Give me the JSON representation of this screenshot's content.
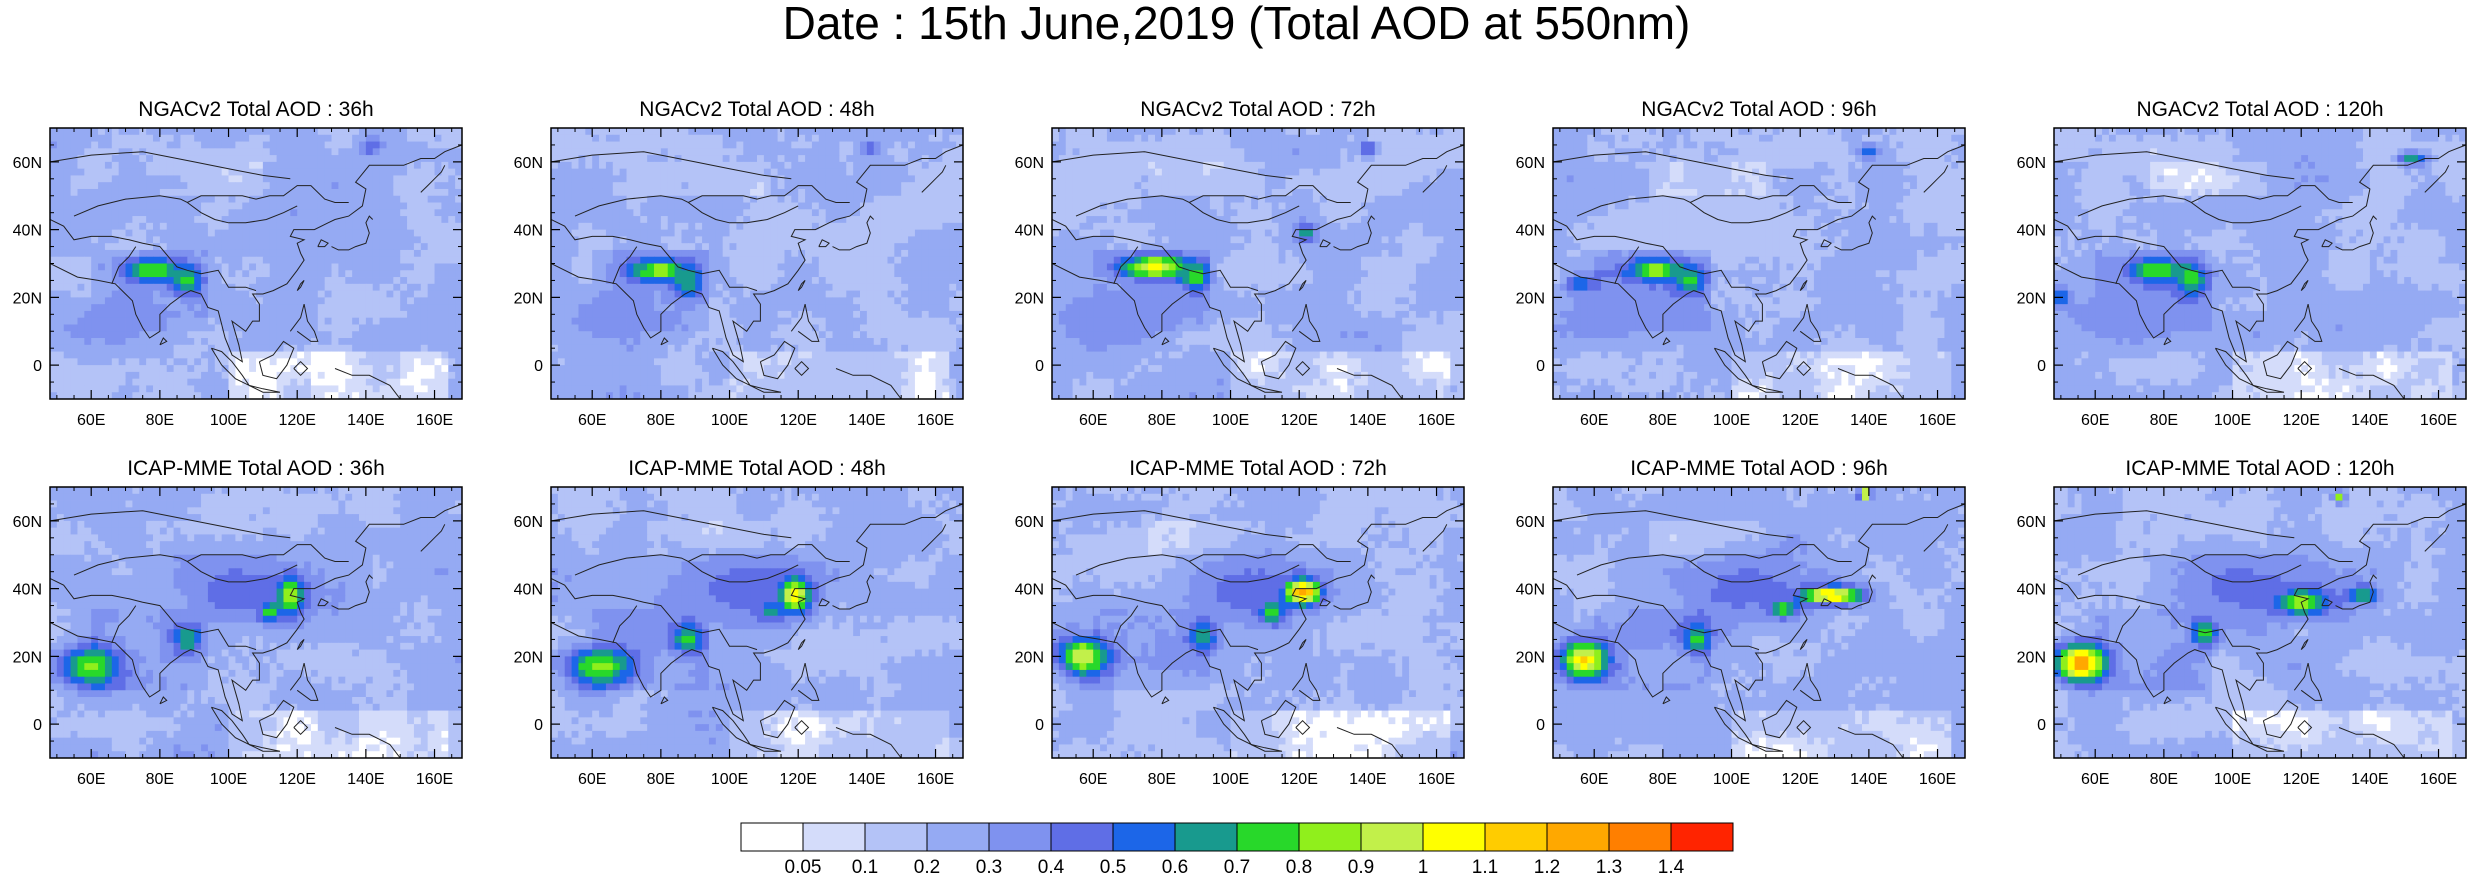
{
  "title": "Date : 15th June,2019 (Total AOD at 550nm)",
  "chart_data": {
    "type": "heatmap",
    "title": "Date : 15th June,2019 (Total AOD at 550nm)",
    "xlabel": "",
    "ylabel": "",
    "xlim": [
      48,
      168
    ],
    "ylim": [
      -10,
      70
    ],
    "x_ticks": [
      "60E",
      "80E",
      "100E",
      "120E",
      "140E",
      "160E"
    ],
    "y_ticks": [
      "60N",
      "40N",
      "20N",
      "0"
    ],
    "panels": [
      {
        "title": "NGACv2 Total AOD : 36h",
        "model": "NGACv2",
        "lead": 36
      },
      {
        "title": "NGACv2 Total AOD : 48h",
        "model": "NGACv2",
        "lead": 48
      },
      {
        "title": "NGACv2 Total AOD : 72h",
        "model": "NGACv2",
        "lead": 72
      },
      {
        "title": "NGACv2 Total AOD : 96h",
        "model": "NGACv2",
        "lead": 96
      },
      {
        "title": "NGACv2 Total AOD : 120h",
        "model": "NGACv2",
        "lead": 120
      },
      {
        "title": "ICAP-MME Total AOD : 36h",
        "model": "ICAP-MME",
        "lead": 36
      },
      {
        "title": "ICAP-MME Total AOD : 48h",
        "model": "ICAP-MME",
        "lead": 48
      },
      {
        "title": "ICAP-MME Total AOD : 72h",
        "model": "ICAP-MME",
        "lead": 72
      },
      {
        "title": "ICAP-MME Total AOD : 96h",
        "model": "ICAP-MME",
        "lead": 96
      },
      {
        "title": "ICAP-MME Total AOD : 120h",
        "model": "ICAP-MME",
        "lead": 120
      }
    ],
    "colorbar": {
      "levels": [
        "0.05",
        "0.1",
        "0.2",
        "0.3",
        "0.4",
        "0.5",
        "0.6",
        "0.7",
        "0.8",
        "0.9",
        "1",
        "1.1",
        "1.2",
        "1.3",
        "1.4"
      ],
      "colors": [
        "#ffffff",
        "#d4dcfa",
        "#b4c3f7",
        "#95aaf3",
        "#7f92ef",
        "#5f6ee6",
        "#1c66e8",
        "#189a8e",
        "#28d82a",
        "#90ef1c",
        "#c2f04a",
        "#ffff00",
        "#ffcc00",
        "#ffa800",
        "#ff7f00",
        "#ff2400"
      ]
    },
    "hotspots": [
      [
        {
          "lon": 78,
          "lat": 28,
          "aod": 0.85,
          "sx": 6,
          "sy": 2.5
        },
        {
          "lon": 88,
          "lat": 25,
          "aod": 0.75,
          "sx": 3,
          "sy": 3
        },
        {
          "lon": 141,
          "lat": 64,
          "aod": 0.55,
          "sx": 2,
          "sy": 1.5
        },
        {
          "lon": 67,
          "lat": 12,
          "aod": 0.35,
          "sx": 12,
          "sy": 6
        }
      ],
      [
        {
          "lon": 80,
          "lat": 28,
          "aod": 0.9,
          "sx": 6,
          "sy": 2.5
        },
        {
          "lon": 88,
          "lat": 24,
          "aod": 0.7,
          "sx": 3,
          "sy": 3
        },
        {
          "lon": 141,
          "lat": 64,
          "aod": 0.55,
          "sx": 2,
          "sy": 1.5
        },
        {
          "lon": 65,
          "lat": 14,
          "aod": 0.35,
          "sx": 12,
          "sy": 6
        }
      ],
      [
        {
          "lon": 78,
          "lat": 29,
          "aod": 1.05,
          "sx": 7,
          "sy": 2.5
        },
        {
          "lon": 90,
          "lat": 26,
          "aod": 0.8,
          "sx": 3,
          "sy": 3
        },
        {
          "lon": 122,
          "lat": 39,
          "aod": 0.7,
          "sx": 2,
          "sy": 2
        },
        {
          "lon": 140,
          "lat": 64,
          "aod": 0.55,
          "sx": 2,
          "sy": 1.5
        },
        {
          "lon": 65,
          "lat": 14,
          "aod": 0.4,
          "sx": 12,
          "sy": 6
        }
      ],
      [
        {
          "lon": 78,
          "lat": 28,
          "aod": 0.85,
          "sx": 6,
          "sy": 2.5
        },
        {
          "lon": 88,
          "lat": 25,
          "aod": 0.75,
          "sx": 3,
          "sy": 3
        },
        {
          "lon": 140,
          "lat": 63,
          "aod": 0.6,
          "sx": 2,
          "sy": 1.5
        },
        {
          "lon": 56,
          "lat": 24,
          "aod": 0.65,
          "sx": 3,
          "sy": 2
        },
        {
          "lon": 65,
          "lat": 14,
          "aod": 0.4,
          "sx": 12,
          "sy": 6
        }
      ],
      [
        {
          "lon": 78,
          "lat": 28,
          "aod": 0.8,
          "sx": 6,
          "sy": 2.5
        },
        {
          "lon": 88,
          "lat": 25,
          "aod": 0.8,
          "sx": 3,
          "sy": 3
        },
        {
          "lon": 152,
          "lat": 61,
          "aod": 0.7,
          "sx": 3,
          "sy": 1.5
        },
        {
          "lon": 50,
          "lat": 20,
          "aod": 0.7,
          "sx": 2,
          "sy": 2
        },
        {
          "lon": 65,
          "lat": 14,
          "aod": 0.4,
          "sx": 12,
          "sy": 6
        }
      ],
      [
        {
          "lon": 60,
          "lat": 17,
          "aod": 0.85,
          "sx": 6,
          "sy": 4
        },
        {
          "lon": 118,
          "lat": 38,
          "aod": 0.95,
          "sx": 3,
          "sy": 4
        },
        {
          "lon": 112,
          "lat": 33,
          "aod": 0.8,
          "sx": 2.5,
          "sy": 2
        },
        {
          "lon": 88,
          "lat": 25,
          "aod": 0.7,
          "sx": 3,
          "sy": 3
        },
        {
          "lon": 105,
          "lat": 40,
          "aod": 0.45,
          "sx": 15,
          "sy": 8
        }
      ],
      [
        {
          "lon": 62,
          "lat": 17,
          "aod": 0.85,
          "sx": 7,
          "sy": 4
        },
        {
          "lon": 119,
          "lat": 38,
          "aod": 1.05,
          "sx": 3.5,
          "sy": 4
        },
        {
          "lon": 88,
          "lat": 25,
          "aod": 0.8,
          "sx": 3,
          "sy": 3
        },
        {
          "lon": 112,
          "lat": 33,
          "aod": 0.7,
          "sx": 2.5,
          "sy": 2
        },
        {
          "lon": 105,
          "lat": 40,
          "aod": 0.45,
          "sx": 15,
          "sy": 8
        }
      ],
      [
        {
          "lon": 57,
          "lat": 20,
          "aod": 1.0,
          "sx": 5,
          "sy": 4
        },
        {
          "lon": 121,
          "lat": 39,
          "aod": 1.25,
          "sx": 4,
          "sy": 3
        },
        {
          "lon": 112,
          "lat": 33,
          "aod": 0.8,
          "sx": 3,
          "sy": 2.5
        },
        {
          "lon": 92,
          "lat": 26,
          "aod": 0.75,
          "sx": 3,
          "sy": 3
        },
        {
          "lon": 106,
          "lat": 40,
          "aod": 0.45,
          "sx": 15,
          "sy": 8
        }
      ],
      [
        {
          "lon": 57,
          "lat": 19,
          "aod": 1.1,
          "sx": 5,
          "sy": 4
        },
        {
          "lon": 129,
          "lat": 38,
          "aod": 1.15,
          "sx": 7,
          "sy": 2
        },
        {
          "lon": 115,
          "lat": 34,
          "aod": 0.85,
          "sx": 3,
          "sy": 2
        },
        {
          "lon": 90,
          "lat": 25,
          "aod": 0.75,
          "sx": 3,
          "sy": 3
        },
        {
          "lon": 139,
          "lat": 68,
          "aod": 1.2,
          "sx": 1.2,
          "sy": 1.2
        },
        {
          "lon": 105,
          "lat": 40,
          "aod": 0.45,
          "sx": 15,
          "sy": 8
        }
      ],
      [
        {
          "lon": 56,
          "lat": 18,
          "aod": 1.3,
          "sx": 5,
          "sy": 4
        },
        {
          "lon": 120,
          "lat": 36,
          "aod": 0.9,
          "sx": 6,
          "sy": 3
        },
        {
          "lon": 92,
          "lat": 27,
          "aod": 0.8,
          "sx": 3,
          "sy": 3
        },
        {
          "lon": 138,
          "lat": 38,
          "aod": 0.75,
          "sx": 3,
          "sy": 2
        },
        {
          "lon": 131,
          "lat": 67,
          "aod": 0.8,
          "sx": 1.2,
          "sy": 1.2
        },
        {
          "lon": 105,
          "lat": 40,
          "aod": 0.45,
          "sx": 15,
          "sy": 8
        }
      ]
    ]
  }
}
